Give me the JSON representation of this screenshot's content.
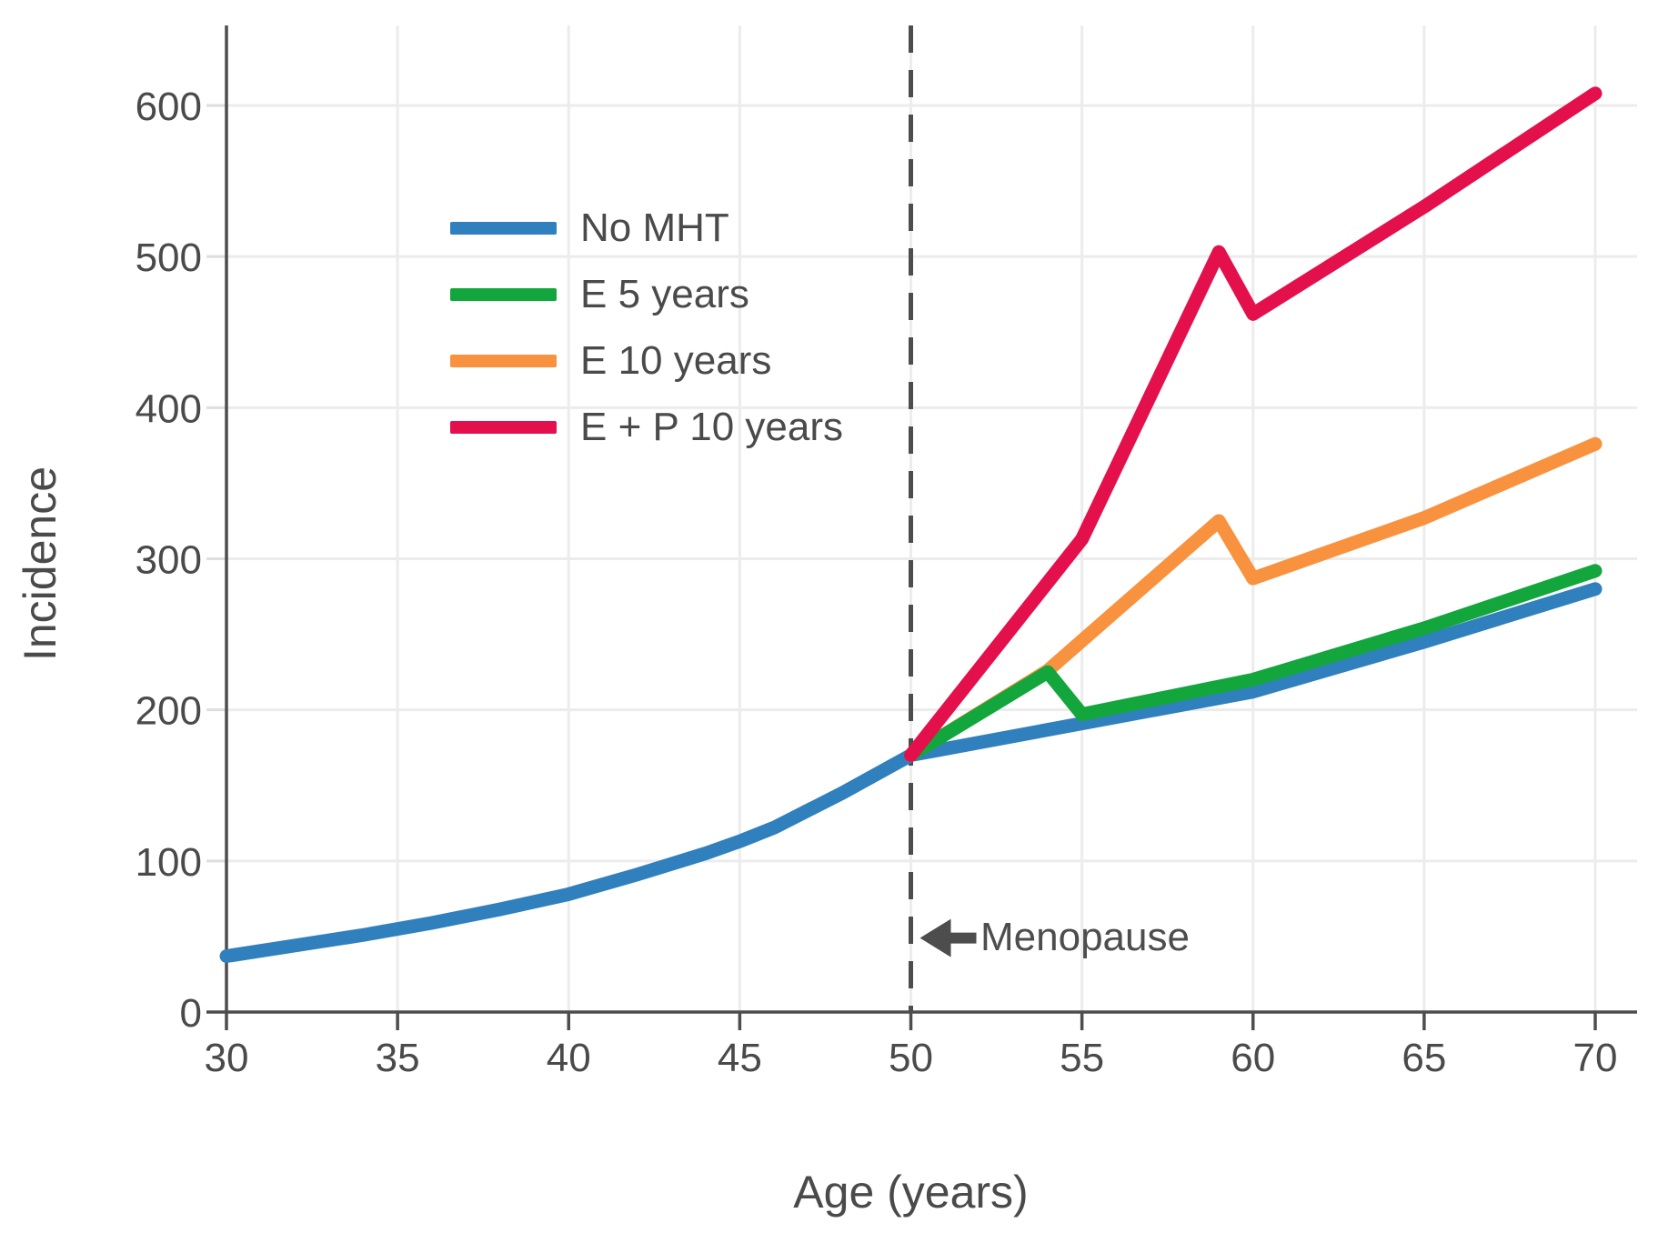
{
  "chart_data": {
    "type": "line",
    "title": "",
    "xlabel": "Age (years)",
    "ylabel": "Incidence",
    "xlim": [
      30,
      71
    ],
    "ylim": [
      0,
      650
    ],
    "xticks": [
      30,
      35,
      40,
      45,
      50,
      55,
      60,
      65,
      70
    ],
    "yticks": [
      0,
      100,
      200,
      300,
      400,
      500,
      600
    ],
    "grid": true,
    "legend": {
      "position": "upper-left-inside",
      "entries": [
        "No MHT",
        "E 5 years",
        "E 10 years",
        "E + P 10 years"
      ]
    },
    "series": [
      {
        "name": "No MHT",
        "color": "#3080be",
        "points": [
          [
            30,
            37
          ],
          [
            32,
            44
          ],
          [
            34,
            51
          ],
          [
            36,
            59
          ],
          [
            38,
            68
          ],
          [
            40,
            78
          ],
          [
            42,
            91
          ],
          [
            44,
            105
          ],
          [
            45,
            113
          ],
          [
            46,
            122
          ],
          [
            48,
            145
          ],
          [
            50,
            170
          ],
          [
            55,
            191
          ],
          [
            60,
            212
          ],
          [
            65,
            245
          ],
          [
            70,
            280
          ]
        ]
      },
      {
        "name": "E 10 years",
        "color": "#f9923e",
        "points": [
          [
            50,
            170
          ],
          [
            54,
            226
          ],
          [
            59,
            325
          ],
          [
            60,
            287
          ],
          [
            65,
            327
          ],
          [
            70,
            376
          ]
        ]
      },
      {
        "name": "E 5 years",
        "color": "#12a63c",
        "points": [
          [
            50,
            170
          ],
          [
            54,
            225
          ],
          [
            55,
            197
          ],
          [
            60,
            220
          ],
          [
            65,
            254
          ],
          [
            70,
            292
          ]
        ]
      },
      {
        "name": "E + P 10 years",
        "color": "#e3104c",
        "points": [
          [
            50,
            170
          ],
          [
            55,
            313
          ],
          [
            59,
            503
          ],
          [
            60,
            462
          ],
          [
            65,
            533
          ],
          [
            70,
            608
          ]
        ]
      }
    ],
    "annotation": {
      "label": "Menopause",
      "line_x": 50,
      "arrow_y": 49,
      "style": "dashed-vertical-line-with-left-arrow"
    }
  },
  "legend_display_order": {
    "row0": "No MHT",
    "row1": "E 5 years",
    "row2": "E 10 years",
    "row3": "E + P 10 years"
  },
  "colors": {
    "axis": "#4d4d4d",
    "text": "#4a4a4a",
    "grid": "#ececec",
    "background": "#ffffff"
  }
}
